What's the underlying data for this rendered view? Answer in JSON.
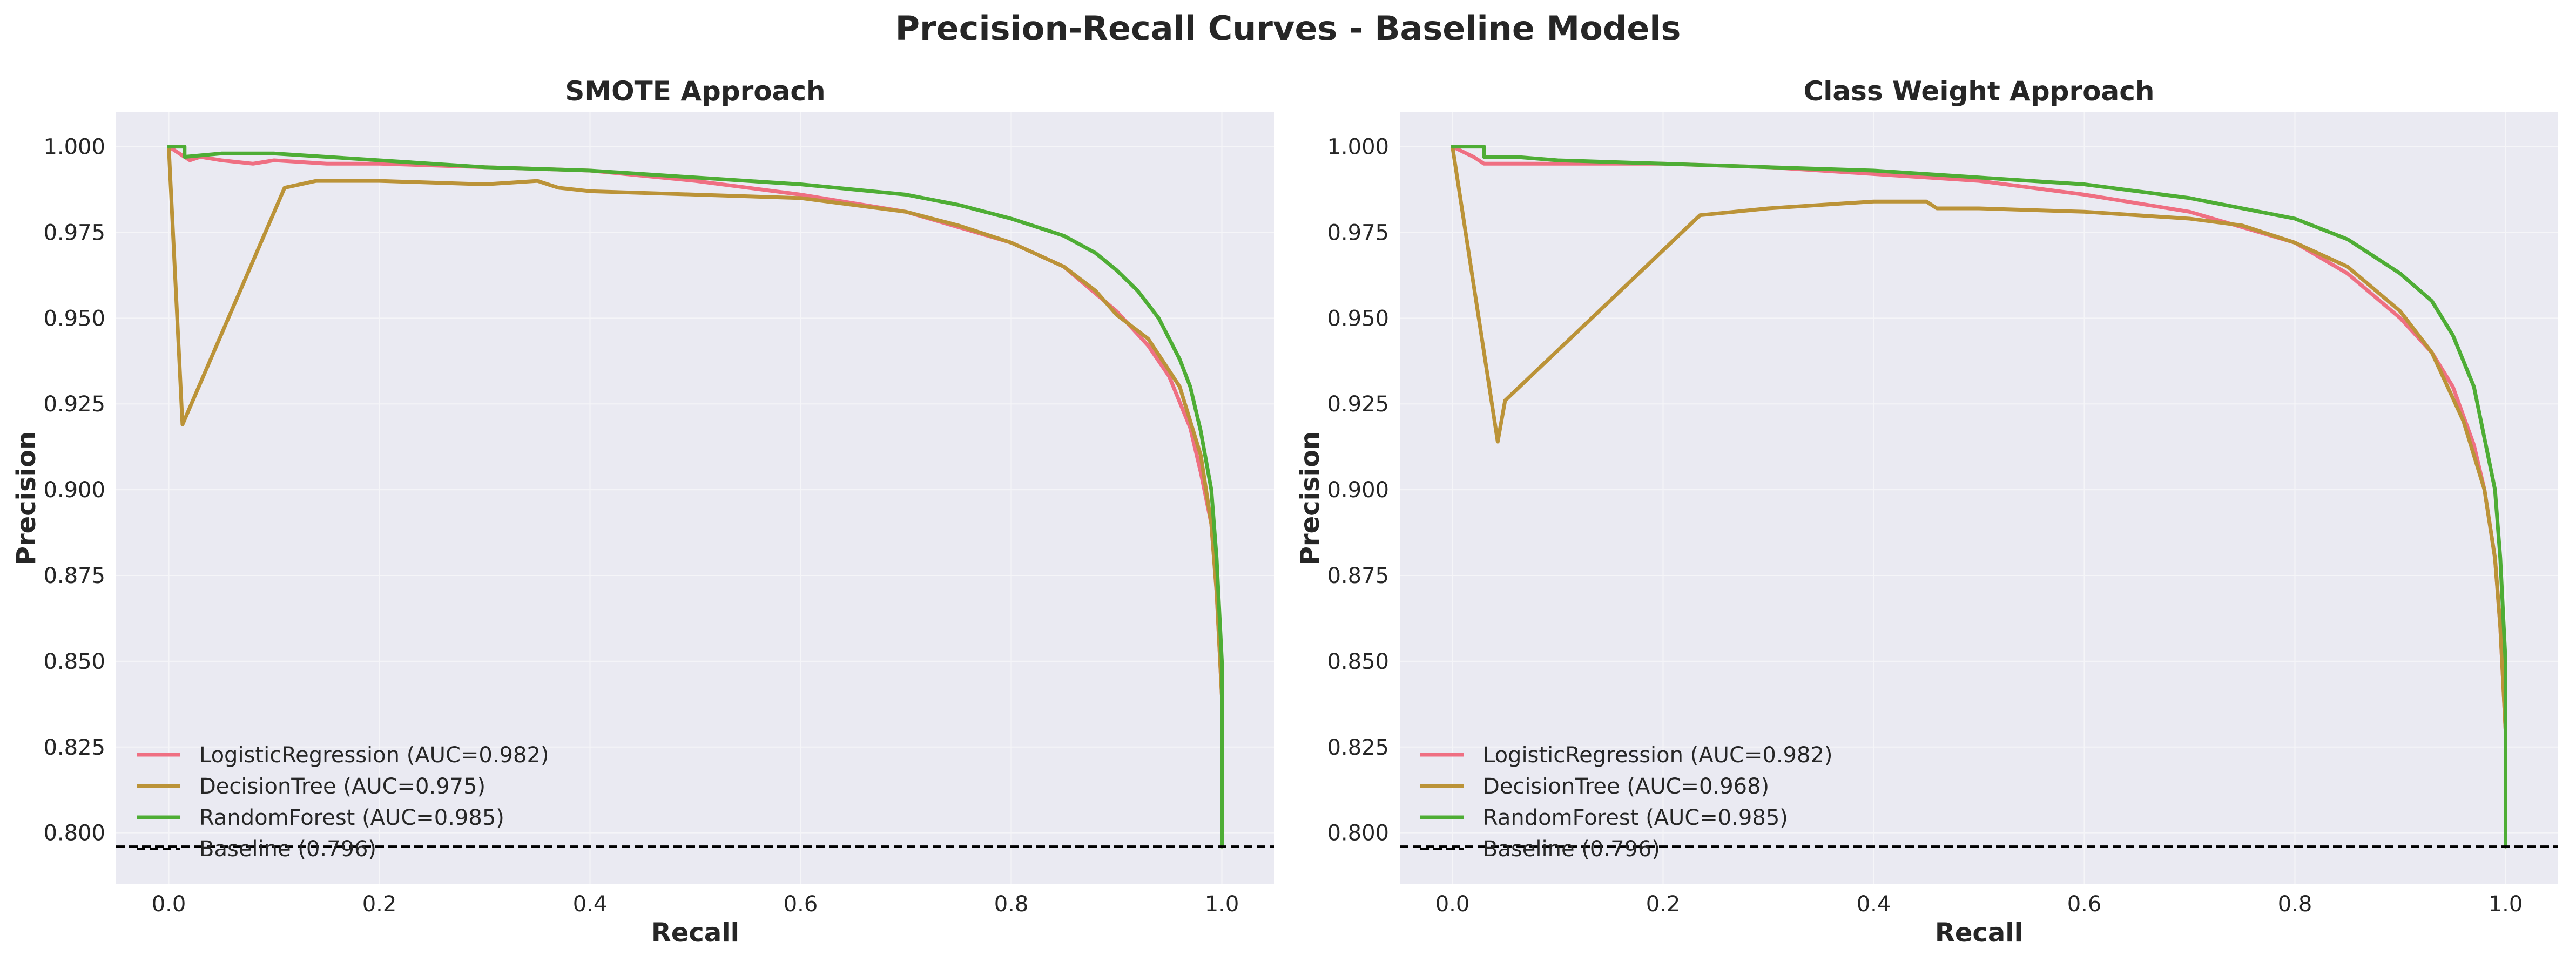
{
  "figure_title": "Precision-Recall Curves - Baseline Models",
  "chart_data": [
    {
      "type": "line",
      "title": "SMOTE Approach",
      "xlabel": "Recall",
      "ylabel": "Precision",
      "xlim": [
        -0.05,
        1.05
      ],
      "ylim": [
        0.785,
        1.01
      ],
      "xticks": [
        0.0,
        0.2,
        0.4,
        0.6,
        0.8,
        1.0
      ],
      "xtick_labels": [
        "0.0",
        "0.2",
        "0.4",
        "0.6",
        "0.8",
        "1.0"
      ],
      "yticks": [
        0.8,
        0.825,
        0.85,
        0.875,
        0.9,
        0.925,
        0.95,
        0.975,
        1.0
      ],
      "ytick_labels": [
        "0.800",
        "0.825",
        "0.850",
        "0.875",
        "0.900",
        "0.925",
        "0.950",
        "0.975",
        "1.000"
      ],
      "grid": true,
      "legend_position": "lower-left",
      "series": [
        {
          "name": "LogisticRegression (AUC=0.982)",
          "color": "#ef6f82",
          "x": [
            0.0,
            0.01,
            0.02,
            0.03,
            0.05,
            0.08,
            0.1,
            0.15,
            0.2,
            0.3,
            0.4,
            0.5,
            0.6,
            0.7,
            0.8,
            0.85,
            0.9,
            0.93,
            0.95,
            0.97,
            0.98,
            0.99,
            0.995,
            1.0,
            1.0
          ],
          "y": [
            1.0,
            0.998,
            0.996,
            0.997,
            0.996,
            0.995,
            0.996,
            0.995,
            0.995,
            0.994,
            0.993,
            0.99,
            0.986,
            0.981,
            0.972,
            0.965,
            0.952,
            0.942,
            0.933,
            0.918,
            0.905,
            0.89,
            0.87,
            0.84,
            0.796
          ]
        },
        {
          "name": "DecisionTree (AUC=0.975)",
          "color": "#bb9338",
          "x": [
            0.0,
            0.013,
            0.11,
            0.14,
            0.2,
            0.3,
            0.35,
            0.37,
            0.4,
            0.5,
            0.6,
            0.7,
            0.75,
            0.8,
            0.85,
            0.88,
            0.9,
            0.93,
            0.96,
            0.98,
            0.99,
            0.995,
            1.0,
            1.0
          ],
          "y": [
            1.0,
            0.919,
            0.988,
            0.99,
            0.99,
            0.989,
            0.99,
            0.988,
            0.987,
            0.986,
            0.985,
            0.981,
            0.977,
            0.972,
            0.965,
            0.958,
            0.951,
            0.944,
            0.93,
            0.91,
            0.89,
            0.87,
            0.84,
            0.796
          ]
        },
        {
          "name": "RandomForest (AUC=0.985)",
          "color": "#4ead35",
          "x": [
            0.0,
            0.015,
            0.015,
            0.05,
            0.1,
            0.2,
            0.3,
            0.4,
            0.5,
            0.6,
            0.7,
            0.75,
            0.8,
            0.85,
            0.88,
            0.9,
            0.92,
            0.94,
            0.96,
            0.97,
            0.98,
            0.99,
            0.995,
            1.0,
            1.0
          ],
          "y": [
            1.0,
            1.0,
            0.997,
            0.998,
            0.998,
            0.996,
            0.994,
            0.993,
            0.991,
            0.989,
            0.986,
            0.983,
            0.979,
            0.974,
            0.969,
            0.964,
            0.958,
            0.95,
            0.938,
            0.93,
            0.917,
            0.9,
            0.88,
            0.85,
            0.796
          ]
        }
      ],
      "baseline": {
        "name": "Baseline (0.796)",
        "value": 0.796,
        "color": "#000000"
      }
    },
    {
      "type": "line",
      "title": "Class Weight Approach",
      "xlabel": "Recall",
      "ylabel": "Precision",
      "xlim": [
        -0.05,
        1.05
      ],
      "ylim": [
        0.785,
        1.01
      ],
      "xticks": [
        0.0,
        0.2,
        0.4,
        0.6,
        0.8,
        1.0
      ],
      "xtick_labels": [
        "0.0",
        "0.2",
        "0.4",
        "0.6",
        "0.8",
        "1.0"
      ],
      "yticks": [
        0.8,
        0.825,
        0.85,
        0.875,
        0.9,
        0.925,
        0.95,
        0.975,
        1.0
      ],
      "ytick_labels": [
        "0.800",
        "0.825",
        "0.850",
        "0.875",
        "0.900",
        "0.925",
        "0.950",
        "0.975",
        "1.000"
      ],
      "grid": true,
      "legend_position": "lower-left",
      "series": [
        {
          "name": "LogisticRegression (AUC=0.982)",
          "color": "#ef6f82",
          "x": [
            0.0,
            0.02,
            0.03,
            0.05,
            0.1,
            0.2,
            0.3,
            0.4,
            0.5,
            0.6,
            0.7,
            0.8,
            0.85,
            0.9,
            0.93,
            0.95,
            0.97,
            0.98,
            0.99,
            0.995,
            1.0,
            1.0
          ],
          "y": [
            1.0,
            0.997,
            0.995,
            0.995,
            0.995,
            0.995,
            0.994,
            0.992,
            0.99,
            0.986,
            0.981,
            0.972,
            0.963,
            0.95,
            0.94,
            0.93,
            0.913,
            0.9,
            0.88,
            0.86,
            0.83,
            0.796
          ]
        },
        {
          "name": "DecisionTree (AUC=0.968)",
          "color": "#bb9338",
          "x": [
            0.0,
            0.043,
            0.05,
            0.235,
            0.3,
            0.4,
            0.45,
            0.46,
            0.5,
            0.6,
            0.7,
            0.75,
            0.8,
            0.85,
            0.9,
            0.93,
            0.96,
            0.98,
            0.99,
            0.995,
            1.0,
            1.0
          ],
          "y": [
            1.0,
            0.914,
            0.926,
            0.98,
            0.982,
            0.984,
            0.984,
            0.982,
            0.982,
            0.981,
            0.979,
            0.977,
            0.972,
            0.965,
            0.952,
            0.94,
            0.92,
            0.9,
            0.88,
            0.86,
            0.83,
            0.796
          ]
        },
        {
          "name": "RandomForest (AUC=0.985)",
          "color": "#4ead35",
          "x": [
            0.0,
            0.03,
            0.03,
            0.06,
            0.1,
            0.2,
            0.3,
            0.4,
            0.5,
            0.6,
            0.7,
            0.8,
            0.85,
            0.9,
            0.93,
            0.95,
            0.97,
            0.98,
            0.99,
            0.995,
            1.0,
            1.0
          ],
          "y": [
            1.0,
            1.0,
            0.997,
            0.997,
            0.996,
            0.995,
            0.994,
            0.993,
            0.991,
            0.989,
            0.985,
            0.979,
            0.973,
            0.963,
            0.955,
            0.945,
            0.93,
            0.915,
            0.9,
            0.88,
            0.85,
            0.796
          ]
        }
      ],
      "baseline": {
        "name": "Baseline (0.796)",
        "value": 0.796,
        "color": "#000000"
      }
    }
  ]
}
